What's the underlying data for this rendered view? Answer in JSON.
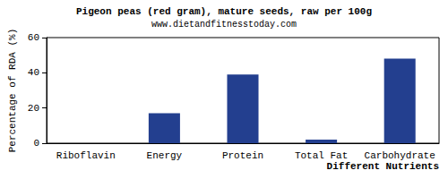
{
  "chart_data": {
    "type": "bar",
    "title": "Pigeon peas (red gram), mature seeds, raw per 100g",
    "subtitle": "www.dietandfitnesstoday.com",
    "x_label": "Different Nutrients",
    "y_label": "Percentage of RDA (%)",
    "categories": [
      "Riboflavin",
      "Energy",
      "Protein",
      "Total Fat",
      "Carbohydrate"
    ],
    "values": [
      0,
      17,
      39,
      2,
      48
    ],
    "color": "#233f8f",
    "ylim": [
      0,
      60
    ],
    "yticks": [
      0,
      20,
      40,
      60
    ],
    "grid": false
  }
}
